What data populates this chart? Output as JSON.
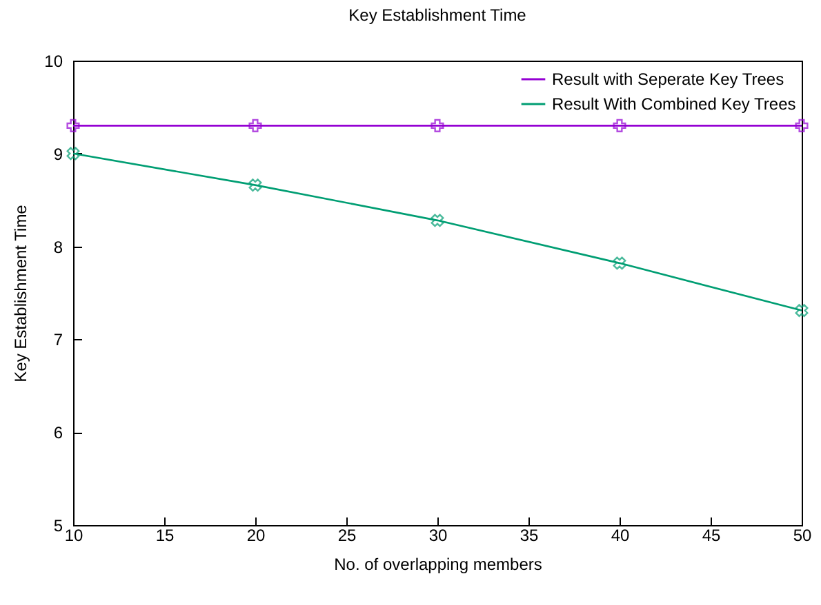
{
  "chart_data": {
    "type": "line",
    "title": "Key Establishment Time",
    "xlabel": "No. of overlapping members",
    "ylabel": "Key Establishment Time",
    "x": [
      10,
      20,
      30,
      40,
      50
    ],
    "series": [
      {
        "name": "Result with Seperate Key Trees",
        "color": "#9400d3",
        "values": [
          9.3,
          9.3,
          9.3,
          9.3,
          9.3
        ]
      },
      {
        "name": "Result With Combined Key Trees",
        "color": "#009e73",
        "values": [
          9.0,
          8.66,
          8.28,
          7.82,
          7.31
        ]
      }
    ],
    "xlim": [
      10,
      50
    ],
    "xticks": [
      10,
      15,
      20,
      25,
      30,
      35,
      40,
      45,
      50
    ],
    "ylim": [
      5,
      10
    ],
    "yticks": [
      5,
      6,
      7,
      8,
      9,
      10
    ],
    "grid": false,
    "legend": "top right",
    "marker": "cross",
    "line_style": "solid"
  }
}
